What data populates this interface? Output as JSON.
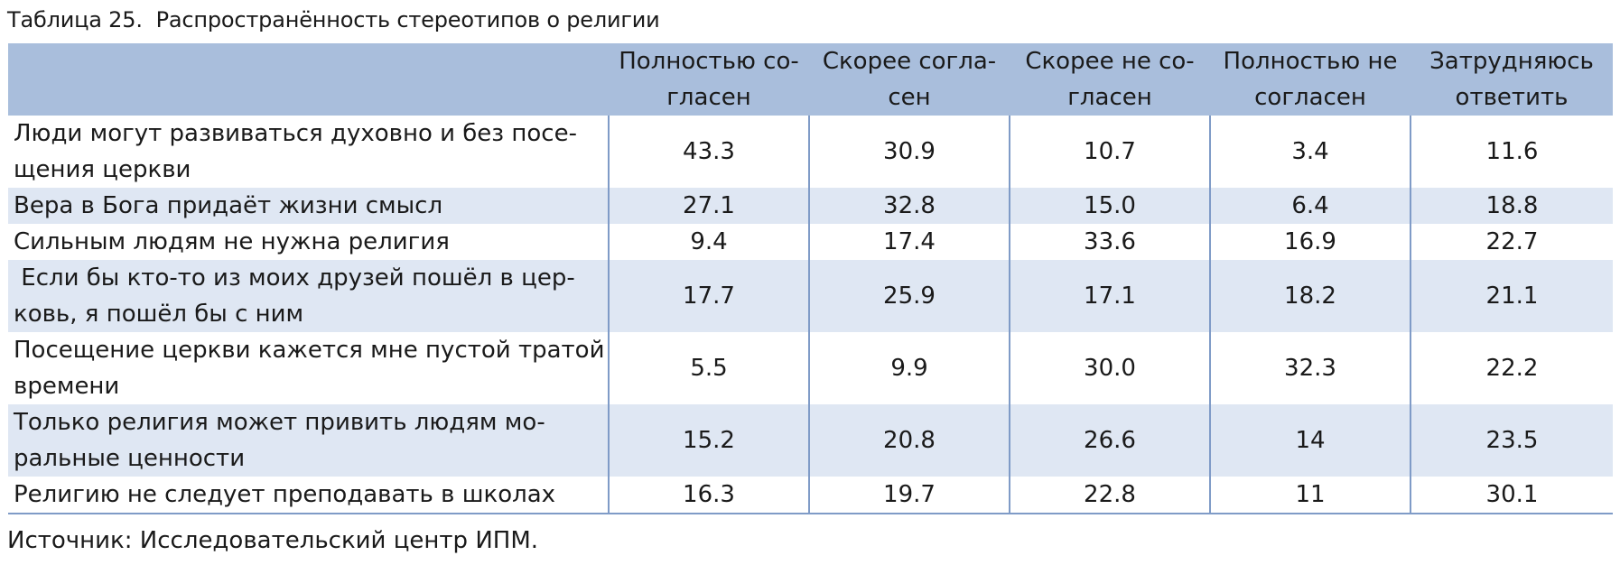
{
  "caption": "Таблица 25.  Распространённость стереотипов о религии",
  "header": {
    "empty": "",
    "columns": [
      "Полностью со-\nгласен",
      "Скорее согла-\nсен",
      "Скорее не со-\nгласен",
      "Полностью не\nсогласен",
      "Затрудняюсь\nответить"
    ]
  },
  "rows": [
    {
      "label": "Люди могут развиваться духовно и без посе-\nщения церкви",
      "values": [
        "43.3",
        "30.9",
        "10.7",
        "3.4",
        "11.6"
      ]
    },
    {
      "label": "Вера в Бога придаёт жизни смысл",
      "values": [
        "27.1",
        "32.8",
        "15.0",
        "6.4",
        "18.8"
      ]
    },
    {
      "label": "Сильным людям не нужна религия",
      "values": [
        "9.4",
        "17.4",
        "33.6",
        "16.9",
        "22.7"
      ]
    },
    {
      "label": " Если бы кто-то из моих друзей пошёл в цер-\nковь, я пошёл бы с ним",
      "values": [
        "17.7",
        "25.9",
        "17.1",
        "18.2",
        "21.1"
      ]
    },
    {
      "label": "Посещение церкви кажется мне пустой тратой\nвремени",
      "values": [
        "5.5",
        "9.9",
        "30.0",
        "32.3",
        "22.2"
      ]
    },
    {
      "label": "Только религия может привить людям мо-\nральные ценности",
      "values": [
        "15.2",
        "20.8",
        "26.6",
        "14",
        "23.5"
      ]
    },
    {
      "label": "Религию не следует преподавать в школах",
      "values": [
        "16.3",
        "19.7",
        "22.8",
        "11",
        "30.1"
      ]
    }
  ],
  "source": "Источник: Исследовательский центр ИПМ."
}
